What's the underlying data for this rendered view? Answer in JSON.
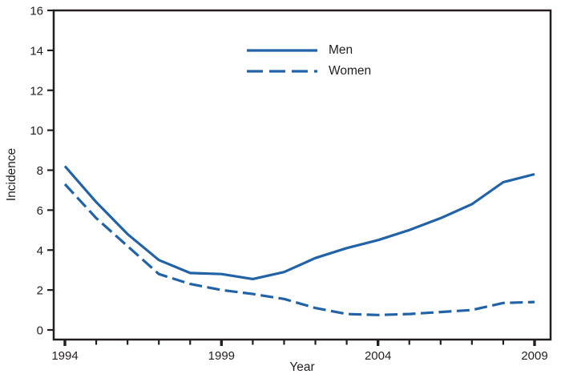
{
  "chart_data": {
    "type": "line",
    "title": "",
    "xlabel": "Year",
    "ylabel": "Incidence",
    "x": [
      1994,
      1995,
      1996,
      1997,
      1998,
      1999,
      2000,
      2001,
      2002,
      2003,
      2004,
      2005,
      2006,
      2007,
      2008,
      2009
    ],
    "series": [
      {
        "name": "Men",
        "line_style": "solid",
        "values": [
          8.2,
          6.4,
          4.8,
          3.5,
          2.85,
          2.8,
          2.55,
          2.9,
          3.6,
          4.1,
          4.5,
          5.0,
          5.6,
          6.3,
          7.4,
          7.8
        ]
      },
      {
        "name": "Women",
        "line_style": "dashed",
        "values": [
          7.3,
          5.6,
          4.2,
          2.8,
          2.3,
          2.0,
          1.8,
          1.55,
          1.1,
          0.8,
          0.75,
          0.8,
          0.9,
          1.0,
          1.35,
          1.4
        ]
      }
    ],
    "ylim": [
      0,
      16
    ],
    "yticks": [
      0,
      2,
      4,
      6,
      8,
      10,
      12,
      14,
      16
    ],
    "xticks_labeled": [
      1994,
      1999,
      2004,
      2009
    ],
    "legend_position": "inside upper center-left",
    "grid": false,
    "colors": {
      "series_line": "#2262A6",
      "axis": "#231F20",
      "background": "#FFFFFF"
    }
  }
}
